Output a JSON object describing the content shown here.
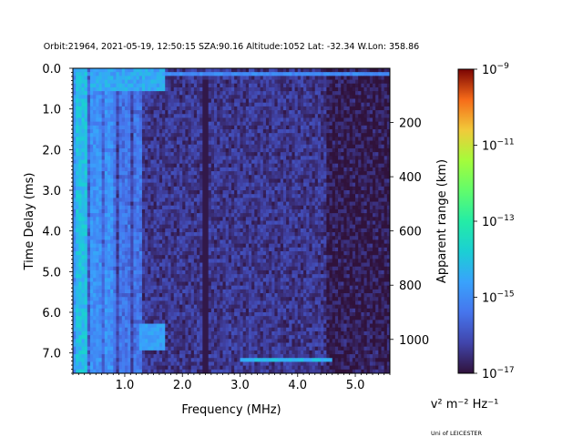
{
  "chart_data": {
    "type": "heatmap",
    "title": "Orbit:21964, 2021-05-19, 12:50:15 SZA:90.16 Altitude:1052 Lat: -32.34 W.Lon: 358.86",
    "xlabel": "Frequency (MHz)",
    "ylabel": "Time Delay (ms)",
    "y2label": "Apparent range (km)",
    "xlim": [
      0.1,
      5.6
    ],
    "ylim": [
      7.5,
      0.0
    ],
    "x_ticks": [
      1.0,
      2.0,
      3.0,
      4.0,
      5.0
    ],
    "x_tick_labels": [
      "1.0",
      "2.0",
      "3.0",
      "4.0",
      "5.0"
    ],
    "y_ticks": [
      0.0,
      1.0,
      2.0,
      3.0,
      4.0,
      5.0,
      6.0,
      7.0
    ],
    "y_tick_labels": [
      "0.0",
      "1.0",
      "2.0",
      "3.0",
      "4.0",
      "5.0",
      "6.0",
      "7.0"
    ],
    "y2_ticks_km": [
      200,
      400,
      600,
      800,
      1000
    ],
    "y2_tick_labels": [
      "200",
      "400",
      "600",
      "800",
      "1000"
    ],
    "grid": false,
    "colormap": "turbo",
    "colorbar": {
      "scale": "log",
      "min": 1e-17,
      "max": 1e-09,
      "ticks": [
        1e-09,
        1e-11,
        1e-13,
        1e-15,
        1e-17
      ],
      "tick_labels": [
        {
          "base": "10",
          "exp": "−9"
        },
        {
          "base": "10",
          "exp": "−11"
        },
        {
          "base": "10",
          "exp": "−13"
        },
        {
          "base": "10",
          "exp": "−15"
        },
        {
          "base": "10",
          "exp": "−17"
        }
      ],
      "units": "v² m⁻² Hz⁻¹"
    },
    "grid_shape": {
      "frequency_bins": 110,
      "delay_bins": 80
    },
    "features": [
      {
        "name": "surface/low-frequency band",
        "freq_mhz": [
          0.1,
          1.3
        ],
        "delay_ms": [
          0.0,
          7.5
        ],
        "log10_power": -15.2
      },
      {
        "name": "top echo row",
        "freq_mhz": [
          0.1,
          5.6
        ],
        "delay_ms": [
          0.1,
          0.2
        ],
        "log10_power": -15.3
      },
      {
        "name": "vertical stripe",
        "freq_mhz": [
          2.35,
          2.45
        ],
        "delay_ms": [
          0.3,
          7.5
        ],
        "log10_power": -16.8
      },
      {
        "name": "bright echo",
        "freq_mhz": [
          3.0,
          4.6
        ],
        "delay_ms": [
          7.1,
          7.25
        ],
        "log10_power": -14.4
      },
      {
        "name": "noise floor",
        "freq_mhz": [
          0.1,
          5.6
        ],
        "delay_ms": [
          0.0,
          7.5
        ],
        "log10_power": -16.6
      }
    ]
  },
  "credit": "Uni of LEICESTER"
}
